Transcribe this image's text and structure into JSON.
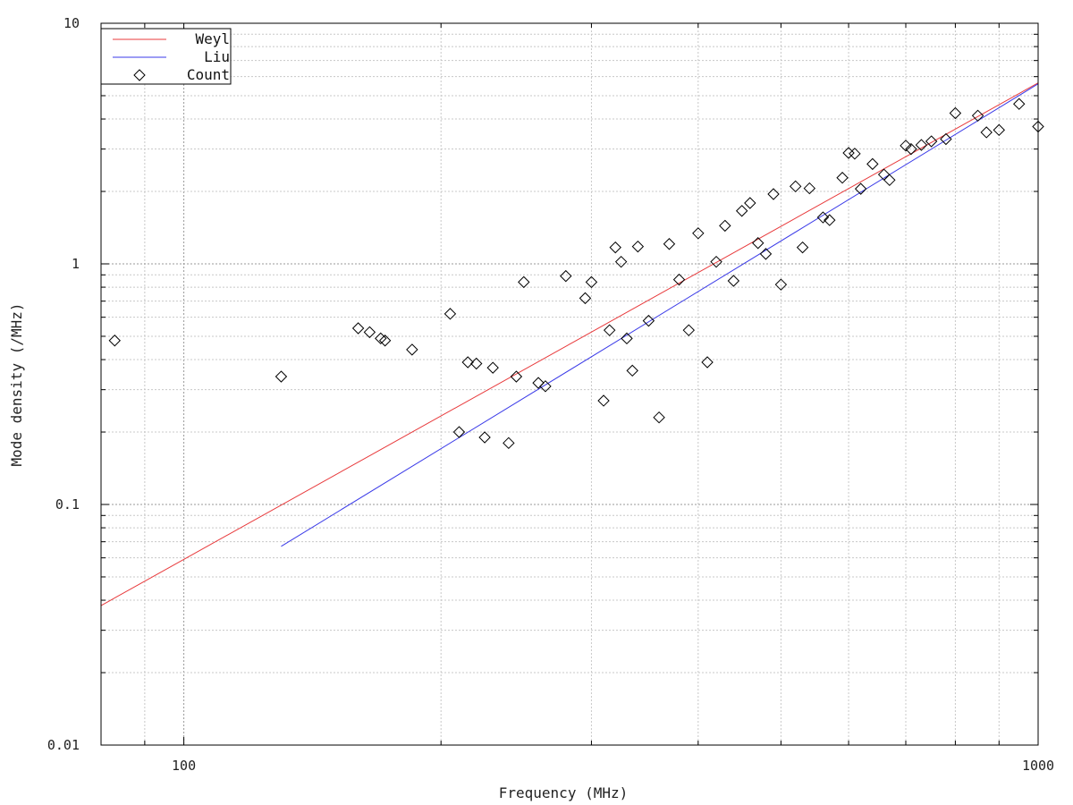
{
  "chart_data": {
    "type": "scatter",
    "title": "",
    "xlabel": "Frequency (MHz)",
    "ylabel": "Mode density (/MHz)",
    "xscale": "log",
    "yscale": "log",
    "xlim": [
      80,
      1000
    ],
    "ylim": [
      0.01,
      10
    ],
    "x_tick_labels": [
      "100",
      "1000"
    ],
    "y_tick_labels": [
      "0.01",
      "0.1",
      "1",
      "10"
    ],
    "grid": true,
    "legend_position": "top-left",
    "series": [
      {
        "name": "Weyl",
        "kind": "line",
        "color": "#e8393b",
        "x": [
          80,
          1000
        ],
        "y": [
          0.038,
          5.65
        ]
      },
      {
        "name": "Liu",
        "kind": "line",
        "color": "#3a3ae8",
        "x": [
          130,
          1000
        ],
        "y": [
          0.067,
          5.6
        ]
      },
      {
        "name": "Count",
        "kind": "points",
        "color": "#000000",
        "marker": "diamond",
        "x": [
          83,
          130,
          160,
          165,
          170,
          172,
          185,
          205,
          210,
          215,
          220,
          225,
          230,
          240,
          245,
          250,
          260,
          265,
          280,
          295,
          300,
          310,
          315,
          320,
          325,
          330,
          335,
          340,
          350,
          360,
          370,
          380,
          390,
          400,
          410,
          420,
          430,
          440,
          450,
          460,
          470,
          480,
          490,
          500,
          520,
          530,
          540,
          560,
          570,
          590,
          600,
          610,
          620,
          640,
          660,
          670,
          700,
          710,
          730,
          750,
          780,
          800,
          850,
          870,
          900,
          950,
          1000
        ],
        "y": [
          0.48,
          0.34,
          0.54,
          0.52,
          0.49,
          0.48,
          0.44,
          0.62,
          0.2,
          0.39,
          0.385,
          0.19,
          0.37,
          0.18,
          0.34,
          0.84,
          0.32,
          0.31,
          0.89,
          0.72,
          0.84,
          0.27,
          0.53,
          1.17,
          1.02,
          0.49,
          0.36,
          1.18,
          0.58,
          0.23,
          1.21,
          0.86,
          0.53,
          1.34,
          0.39,
          1.02,
          1.44,
          0.85,
          1.66,
          1.79,
          1.22,
          1.1,
          1.95,
          0.82,
          2.1,
          1.17,
          2.06,
          1.56,
          1.52,
          2.28,
          2.89,
          2.87,
          2.05,
          2.6,
          2.35,
          2.23,
          3.1,
          3.0,
          3.12,
          3.23,
          3.3,
          4.23,
          4.13,
          3.52,
          3.6,
          4.62,
          3.72
        ]
      }
    ]
  }
}
